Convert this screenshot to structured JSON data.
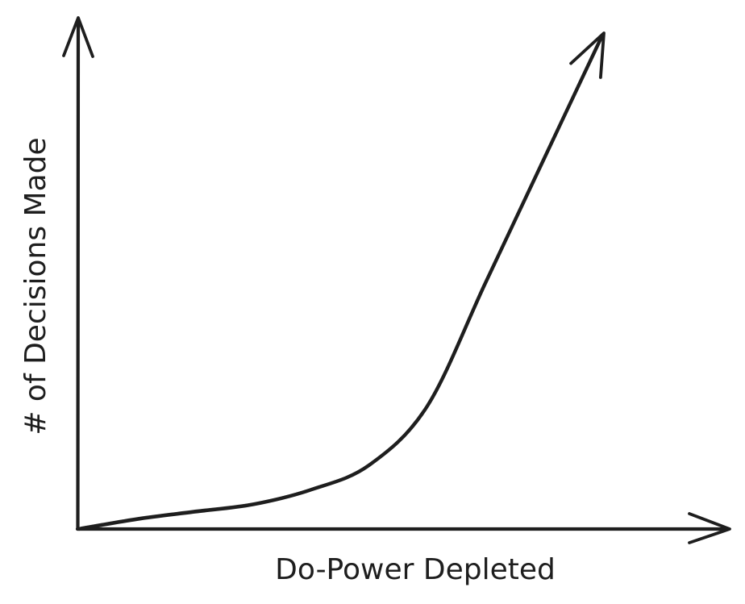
{
  "chart_data": {
    "type": "line",
    "title": "",
    "xlabel": "Do-Power Depleted",
    "ylabel": "# of Decisions Made",
    "series": [
      {
        "values": [
          {
            "x": 0.0,
            "y": 0.0
          },
          {
            "x": 0.1,
            "y": 0.02
          },
          {
            "x": 0.2,
            "y": 0.035
          },
          {
            "x": 0.3,
            "y": 0.05
          },
          {
            "x": 0.4,
            "y": 0.08
          },
          {
            "x": 0.5,
            "y": 0.13
          },
          {
            "x": 0.6,
            "y": 0.25
          },
          {
            "x": 0.7,
            "y": 0.5
          },
          {
            "x": 0.8,
            "y": 0.75
          },
          {
            "x": 0.9,
            "y": 1.0
          }
        ]
      }
    ],
    "xlim": [
      0,
      1
    ],
    "ylim": [
      0,
      1
    ],
    "grid": false,
    "legend": "none",
    "color": "#1e1e1e"
  }
}
